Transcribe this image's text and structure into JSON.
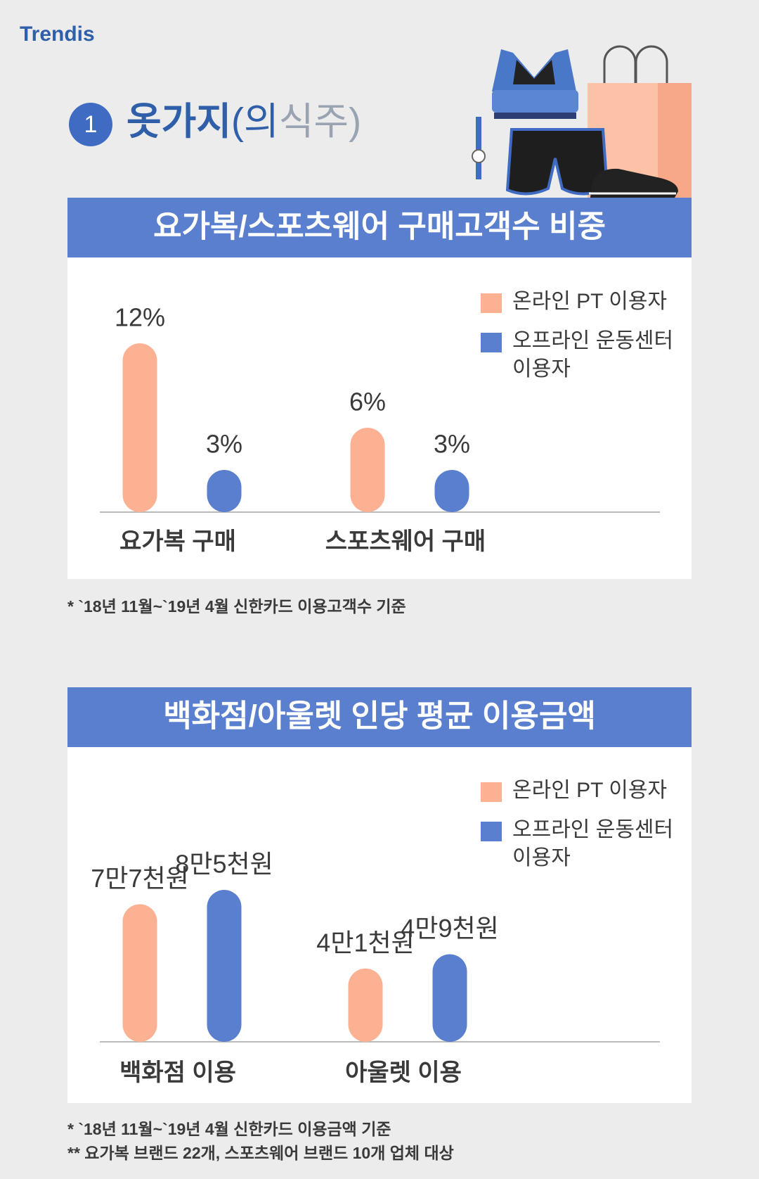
{
  "logo": "Trendis",
  "section": {
    "number": "1",
    "title": "옷가지",
    "paren_dark": "(의",
    "paren_light": "식주)"
  },
  "chart_data": [
    {
      "type": "bar",
      "title": "요가복/스포츠웨어 구매고객수 비중",
      "categories": [
        "요가복 구매",
        "스포츠웨어 구매"
      ],
      "series": [
        {
          "name": "온라인 PT 이용자",
          "color": "#fdb193",
          "values": [
            12,
            6
          ],
          "value_labels": [
            "12%",
            "6%"
          ]
        },
        {
          "name": "오프라인 운동센터 이용자",
          "color": "#5a7fcf",
          "values": [
            3,
            3
          ],
          "value_labels": [
            "3%",
            "3%"
          ]
        }
      ],
      "legend": "top-right",
      "notes": [
        "* `18년 11월~`19년 4월 신한카드 이용고객수 기준"
      ]
    },
    {
      "type": "bar",
      "title": "백화점/아울렛 인당 평균 이용금액",
      "categories": [
        "백화점 이용",
        "아울렛 이용"
      ],
      "series": [
        {
          "name": "온라인 PT 이용자",
          "color": "#fdb193",
          "values": [
            77000,
            41000
          ],
          "value_labels": [
            "7만7천원",
            "4만1천원"
          ]
        },
        {
          "name": "오프라인 운동센터 이용자",
          "color": "#5a7fcf",
          "values": [
            85000,
            49000
          ],
          "value_labels": [
            "8만5천원",
            "4만9천원"
          ]
        }
      ],
      "legend": "top-right",
      "notes": [
        "* `18년 11월~`19년 4월 신한카드 이용금액 기준",
        "** 요가복 브랜드 22개, 스포츠웨어 브랜드 10개 업체 대상"
      ]
    }
  ]
}
